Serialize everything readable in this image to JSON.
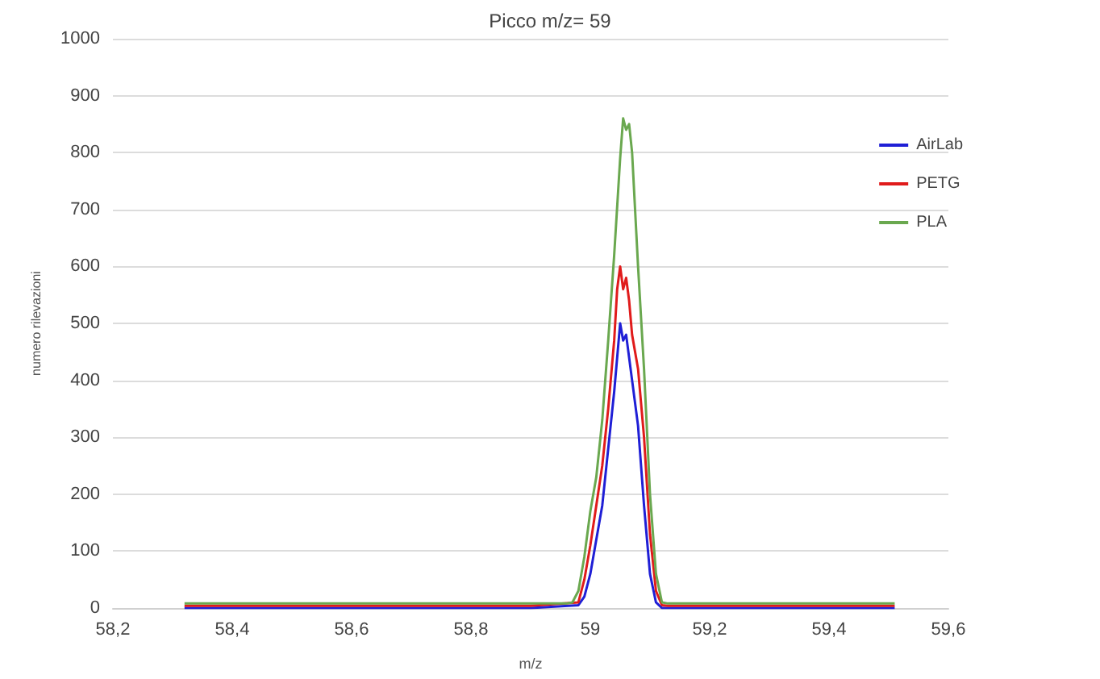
{
  "chart_data": {
    "type": "line",
    "title": "Picco m/z= 59",
    "xlabel": "m/z",
    "ylabel": "numero rilevazioni",
    "xlim": [
      58.2,
      59.6
    ],
    "xticks": [
      {
        "value": 58.2,
        "label": "58,2"
      },
      {
        "value": 58.4,
        "label": "58,4"
      },
      {
        "value": 58.6,
        "label": "58,6"
      },
      {
        "value": 58.8,
        "label": "58,8"
      },
      {
        "value": 59,
        "label": "59"
      },
      {
        "value": 59.2,
        "label": "59,2"
      },
      {
        "value": 59.4,
        "label": "59,4"
      },
      {
        "value": 59.6,
        "label": "59,6"
      }
    ],
    "ylim": [
      0,
      1000
    ],
    "yticks": [
      0,
      100,
      200,
      300,
      400,
      500,
      600,
      700,
      800,
      900,
      1000
    ],
    "grid": "y",
    "legend": "right",
    "marker": "none",
    "line_style": "solid",
    "series": [
      {
        "name": "AirLab",
        "color": "#1f1fd6",
        "x": [
          58.32,
          58.5,
          58.7,
          58.9,
          58.98,
          58.99,
          59.0,
          59.01,
          59.02,
          59.03,
          59.04,
          59.045,
          59.05,
          59.055,
          59.06,
          59.07,
          59.08,
          59.09,
          59.1,
          59.11,
          59.12,
          59.3,
          59.51
        ],
        "values": [
          0,
          0,
          0,
          0,
          5,
          20,
          60,
          120,
          180,
          280,
          380,
          440,
          500,
          470,
          480,
          400,
          320,
          180,
          60,
          10,
          0,
          0,
          0
        ]
      },
      {
        "name": "PETG",
        "color": "#e01b1b",
        "x": [
          58.32,
          58.5,
          58.7,
          58.9,
          58.98,
          58.99,
          59.0,
          59.01,
          59.02,
          59.03,
          59.04,
          59.045,
          59.05,
          59.055,
          59.06,
          59.065,
          59.07,
          59.08,
          59.09,
          59.1,
          59.11,
          59.12,
          59.13,
          59.3,
          59.51
        ],
        "values": [
          4,
          4,
          4,
          4,
          10,
          50,
          110,
          180,
          250,
          350,
          470,
          560,
          600,
          560,
          580,
          540,
          480,
          420,
          300,
          130,
          30,
          5,
          4,
          4,
          4
        ]
      },
      {
        "name": "PLA",
        "color": "#6aa84f",
        "x": [
          58.32,
          58.5,
          58.7,
          58.9,
          58.96,
          58.97,
          58.98,
          58.99,
          59.0,
          59.01,
          59.02,
          59.03,
          59.04,
          59.05,
          59.055,
          59.06,
          59.065,
          59.07,
          59.075,
          59.08,
          59.09,
          59.1,
          59.11,
          59.12,
          59.13,
          59.3,
          59.51
        ],
        "values": [
          8,
          8,
          8,
          8,
          8,
          10,
          30,
          90,
          170,
          230,
          330,
          470,
          620,
          790,
          860,
          840,
          850,
          800,
          700,
          600,
          420,
          200,
          60,
          10,
          8,
          8,
          8
        ]
      }
    ]
  }
}
